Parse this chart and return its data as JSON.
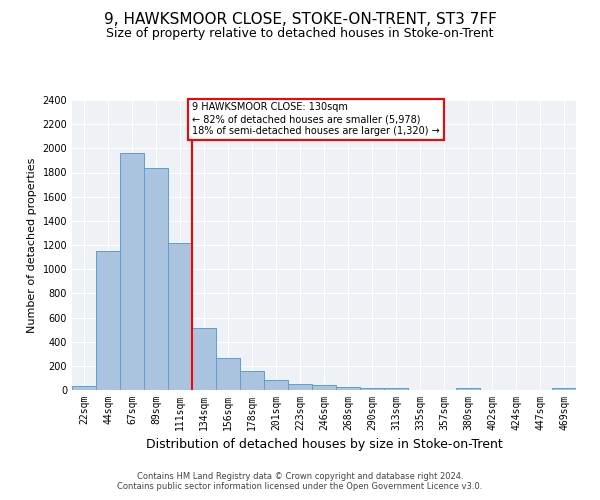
{
  "title": "9, HAWKSMOOR CLOSE, STOKE-ON-TRENT, ST3 7FF",
  "subtitle": "Size of property relative to detached houses in Stoke-on-Trent",
  "xlabel": "Distribution of detached houses by size in Stoke-on-Trent",
  "ylabel": "Number of detached properties",
  "categories": [
    "22sqm",
    "44sqm",
    "67sqm",
    "89sqm",
    "111sqm",
    "134sqm",
    "156sqm",
    "178sqm",
    "201sqm",
    "223sqm",
    "246sqm",
    "268sqm",
    "290sqm",
    "313sqm",
    "335sqm",
    "357sqm",
    "380sqm",
    "402sqm",
    "424sqm",
    "447sqm",
    "469sqm"
  ],
  "values": [
    30,
    1150,
    1960,
    1840,
    1215,
    515,
    265,
    155,
    80,
    50,
    45,
    25,
    20,
    15,
    0,
    0,
    20,
    0,
    0,
    0,
    20
  ],
  "bar_color": "#aac4e0",
  "bar_edge_color": "#5a9fd4",
  "ylim": [
    0,
    2400
  ],
  "yticks": [
    0,
    200,
    400,
    600,
    800,
    1000,
    1200,
    1400,
    1600,
    1800,
    2000,
    2200,
    2400
  ],
  "property_line_x": 4.5,
  "annotation_text": "9 HAWKSMOOR CLOSE: 130sqm\n← 82% of detached houses are smaller (5,978)\n18% of semi-detached houses are larger (1,320) →",
  "annotation_box_color": "white",
  "annotation_box_edge_color": "red",
  "line_color": "red",
  "footer1": "Contains HM Land Registry data © Crown copyright and database right 2024.",
  "footer2": "Contains public sector information licensed under the Open Government Licence v3.0.",
  "background_color": "#eef2f7",
  "title_fontsize": 11,
  "subtitle_fontsize": 9,
  "xlabel_fontsize": 9,
  "ylabel_fontsize": 8,
  "tick_fontsize": 7,
  "footer_fontsize": 6
}
